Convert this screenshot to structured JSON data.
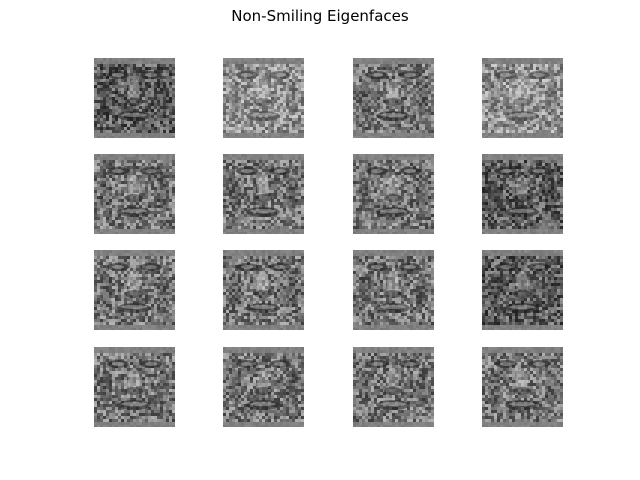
{
  "figure": {
    "title": "Non-Smiling Eigenfaces"
  },
  "eigenfaces": [
    {
      "index": 1,
      "tone": "dark"
    },
    {
      "index": 2,
      "tone": "light"
    },
    {
      "index": 3,
      "tone": "mid"
    },
    {
      "index": 4,
      "tone": "light"
    },
    {
      "index": 5,
      "tone": "mid"
    },
    {
      "index": 6,
      "tone": "mid"
    },
    {
      "index": 7,
      "tone": "mid"
    },
    {
      "index": 8,
      "tone": "dark"
    },
    {
      "index": 9,
      "tone": "mid"
    },
    {
      "index": 10,
      "tone": "mid"
    },
    {
      "index": 11,
      "tone": "mid"
    },
    {
      "index": 12,
      "tone": "dark"
    },
    {
      "index": 13,
      "tone": "mid"
    },
    {
      "index": 14,
      "tone": "mid"
    },
    {
      "index": 15,
      "tone": "mid"
    },
    {
      "index": 16,
      "tone": "mid"
    }
  ],
  "colors": {
    "background": "#ffffff",
    "image_gray": "#808080"
  }
}
